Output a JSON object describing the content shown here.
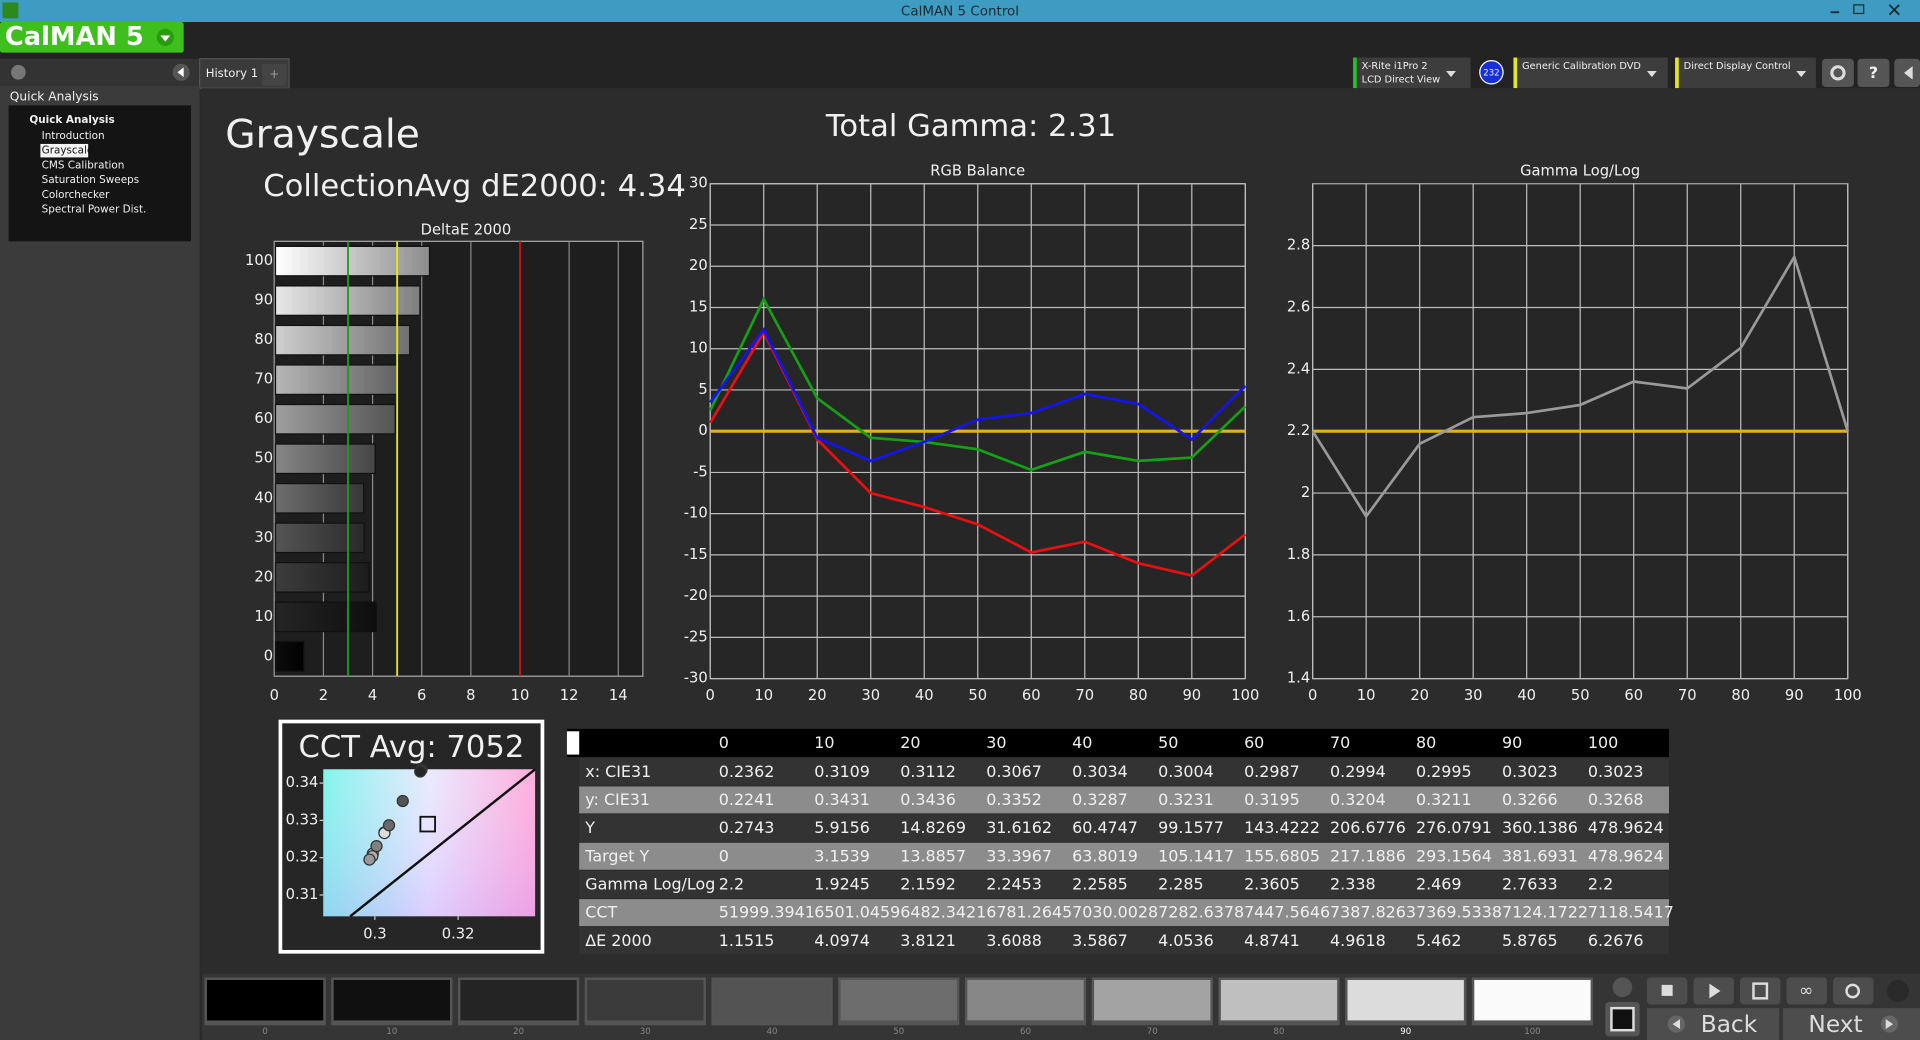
{
  "window": {
    "title": "CalMAN 5 Control",
    "logo": "CalMAN 5"
  },
  "tabs": [
    "History 1"
  ],
  "toolbar": {
    "meter": [
      "X-Rite i1Pro 2",
      "LCD Direct View"
    ],
    "meter_badge": "232",
    "source": "Generic Calibration DVD",
    "display": "Direct Display Control"
  },
  "sidebar": {
    "header": "Quick Analysis",
    "group": "Quick Analysis",
    "items": [
      "Introduction",
      "Grayscale",
      "CMS Calibration",
      "Saturation Sweeps",
      "Colorchecker",
      "Spectral Power Dist."
    ],
    "selected": 1
  },
  "page": {
    "title": "Grayscale",
    "collection": "CollectionAvg dE2000: 4.34",
    "total_gamma": "Total Gamma: 2.31"
  },
  "chart_data": [
    {
      "type": "bar",
      "orientation": "horizontal",
      "title": "DeltaE 2000",
      "categories": [
        0,
        10,
        20,
        30,
        40,
        50,
        60,
        70,
        80,
        90,
        100
      ],
      "values": [
        1.1515,
        4.0974,
        3.8121,
        3.6088,
        3.5867,
        4.0536,
        4.8741,
        4.9618,
        5.462,
        5.8765,
        6.2676
      ],
      "xlim": [
        0,
        15
      ],
      "xticks": [
        0,
        2,
        4,
        6,
        8,
        10,
        12,
        14
      ],
      "grid": true,
      "reference_lines": [
        {
          "value": 3,
          "color": "#1f9a1f"
        },
        {
          "value": 5,
          "color": "#e8e800"
        },
        {
          "value": 10,
          "color": "#d01010"
        }
      ]
    },
    {
      "type": "line",
      "title": "RGB Balance",
      "x": [
        0,
        10,
        20,
        30,
        40,
        50,
        60,
        70,
        80,
        90,
        100
      ],
      "series": [
        {
          "color": "#e81010",
          "values": [
            1,
            12,
            -1,
            -7.5,
            -9.2,
            -11.3,
            -14.7,
            -13.4,
            -16,
            -17.5,
            -12.5
          ]
        },
        {
          "color": "#15a015",
          "values": [
            2.5,
            16,
            4,
            -0.8,
            -1.3,
            -2.2,
            -4.7,
            -2.5,
            -3.6,
            -3.2,
            3
          ]
        },
        {
          "color": "#1414f0",
          "values": [
            3.5,
            12.3,
            -0.8,
            -3.6,
            -1.3,
            1.4,
            2.2,
            4.5,
            3.3,
            -1,
            5.5
          ]
        }
      ],
      "xlim": [
        0,
        100
      ],
      "ylim": [
        -30,
        30
      ],
      "xticks": [
        0,
        10,
        20,
        30,
        40,
        50,
        60,
        70,
        80,
        90,
        100
      ],
      "yticks": [
        -30,
        -25,
        -20,
        -15,
        -10,
        -5,
        0,
        5,
        10,
        15,
        20,
        25,
        30
      ],
      "target": {
        "value": 0,
        "color": "#e0b020"
      },
      "grid": true
    },
    {
      "type": "line",
      "title": "Gamma Log/Log",
      "x": [
        0,
        10,
        20,
        30,
        40,
        50,
        60,
        70,
        80,
        90,
        100
      ],
      "series": [
        {
          "color": "#9a9a9a",
          "values": [
            2.2,
            1.9245,
            2.1592,
            2.2453,
            2.2585,
            2.285,
            2.3605,
            2.338,
            2.469,
            2.7633,
            2.2
          ]
        }
      ],
      "xlim": [
        0,
        100
      ],
      "ylim": [
        1.4,
        3.0
      ],
      "xticks": [
        0,
        10,
        20,
        30,
        40,
        50,
        60,
        70,
        80,
        90,
        100
      ],
      "yticks": [
        1.4,
        1.6,
        1.8,
        2,
        2.2,
        2.4,
        2.6,
        2.8
      ],
      "target": {
        "value": 2.2,
        "color": "#e0b020"
      },
      "grid": true
    },
    {
      "type": "scatter",
      "title": "CCT Avg: 7052",
      "x": [
        0.3109,
        0.3112,
        0.3067,
        0.3034,
        0.3004,
        0.2987,
        0.2994,
        0.2995,
        0.3023,
        0.3023
      ],
      "values": [
        0.3431,
        0.3436,
        0.3352,
        0.3287,
        0.3231,
        0.3195,
        0.3204,
        0.3211,
        0.3266,
        0.3268
      ],
      "xlim": [
        0.2876,
        0.3385
      ],
      "ylim": [
        0.3043,
        0.3437
      ],
      "xticks": [
        0.3,
        0.32
      ],
      "yticks": [
        0.31,
        0.32,
        0.33,
        0.34
      ],
      "target": {
        "x": 0.3127,
        "y": 0.329
      }
    }
  ],
  "table": {
    "columns": [
      0,
      10,
      20,
      30,
      40,
      50,
      60,
      70,
      80,
      90,
      100
    ],
    "rows": [
      {
        "label": "x: CIE31",
        "values": [
          0.2362,
          0.3109,
          0.3112,
          0.3067,
          0.3034,
          0.3004,
          0.2987,
          0.2994,
          0.2995,
          0.3023,
          0.3023
        ]
      },
      {
        "label": "y: CIE31",
        "values": [
          0.2241,
          0.3431,
          0.3436,
          0.3352,
          0.3287,
          0.3231,
          0.3195,
          0.3204,
          0.3211,
          0.3266,
          0.3268
        ]
      },
      {
        "label": "Y",
        "values": [
          0.2743,
          5.9156,
          14.8269,
          31.6162,
          60.4747,
          99.1577,
          143.4222,
          206.6776,
          276.0791,
          360.1386,
          478.9624
        ]
      },
      {
        "label": "Target Y",
        "values": [
          0,
          3.1539,
          13.8857,
          33.3967,
          63.8019,
          105.1417,
          155.6805,
          217.1886,
          293.1564,
          381.6931,
          478.9624
        ]
      },
      {
        "label": "Gamma Log/Log",
        "values": [
          2.2,
          1.9245,
          2.1592,
          2.2453,
          2.2585,
          2.285,
          2.3605,
          2.338,
          2.469,
          2.7633,
          2.2
        ]
      },
      {
        "label": "CCT",
        "values": [
          51999.3941,
          6501.0459,
          6482.3421,
          6781.2645,
          7030.0028,
          7282.6378,
          7447.5646,
          7387.8263,
          7369.5338,
          7124.1722,
          7118.5417
        ]
      },
      {
        "label": "ΔE 2000",
        "values": [
          1.1515,
          4.0974,
          3.8121,
          3.6088,
          3.5867,
          4.0536,
          4.8741,
          4.9618,
          5.462,
          5.8765,
          6.2676
        ]
      }
    ]
  },
  "swatches": [
    0,
    10,
    20,
    30,
    40,
    50,
    60,
    70,
    80,
    90,
    100
  ],
  "buttons": [
    "Back",
    "Next"
  ]
}
